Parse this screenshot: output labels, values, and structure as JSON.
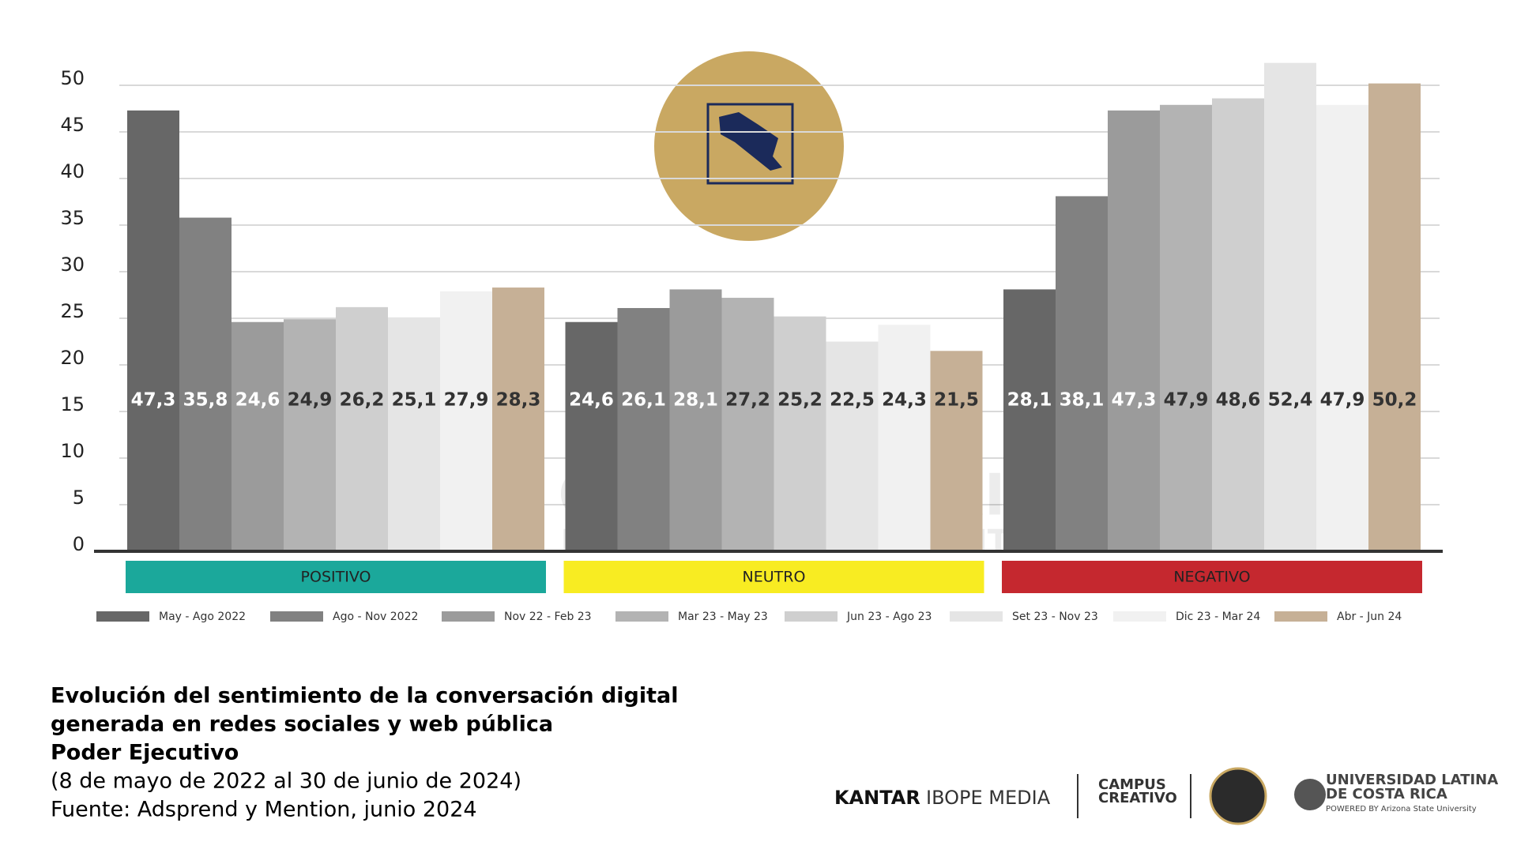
{
  "chart_data": {
    "type": "bar",
    "title": [
      "Evolución del sentimiento de la conversación digital",
      "generada en redes sociales y web pública",
      "Poder Ejecutivo"
    ],
    "subtitle": [
      "(8 de mayo de 2022 al 30 de junio de 2024)",
      "Fuente: Adsprend y Mention, junio 2024"
    ],
    "categories": [
      "POSITIVO",
      "NEUTRO",
      "NEGATIVO"
    ],
    "category_colors": [
      "#1ba89b",
      "#f8ec22",
      "#c5282f"
    ],
    "series": [
      {
        "name": "May - Ago 2022",
        "color": "#676767",
        "values": [
          47.3,
          24.6,
          28.1
        ],
        "value_labels": [
          "47,3",
          "24,6",
          "28,1"
        ]
      },
      {
        "name": "Ago - Nov 2022",
        "color": "#818181",
        "values": [
          35.8,
          26.1,
          38.1
        ],
        "value_labels": [
          "35,8",
          "26,1",
          "38,1"
        ]
      },
      {
        "name": "Nov 22 - Feb 23",
        "color": "#9b9b9b",
        "values": [
          24.6,
          28.1,
          47.3
        ],
        "value_labels": [
          "24,6",
          "28,1",
          "47,3"
        ]
      },
      {
        "name": "Mar 23 - May 23",
        "color": "#b3b3b3",
        "values": [
          24.9,
          27.2,
          47.9
        ],
        "value_labels": [
          "24,9",
          "27,2",
          "47,9"
        ]
      },
      {
        "name": "Jun 23 - Ago 23",
        "color": "#cfcfcf",
        "values": [
          26.2,
          25.2,
          48.6
        ],
        "value_labels": [
          "26,2",
          "25,2",
          "48,6"
        ]
      },
      {
        "name": "Set 23 - Nov 23",
        "color": "#e5e5e5",
        "values": [
          25.1,
          22.5,
          52.4
        ],
        "value_labels": [
          "25,1",
          "22,5",
          "52,4"
        ]
      },
      {
        "name": "Dic 23 - Mar 24",
        "color": "#f1f1f1",
        "values": [
          27.9,
          24.3,
          47.9
        ],
        "value_labels": [
          "27,9",
          "24,3",
          "47,9"
        ]
      },
      {
        "name": "Abr - Jun 24",
        "color": "#c6b096",
        "values": [
          28.3,
          21.5,
          50.2
        ],
        "value_labels": [
          "28,3",
          "21,5",
          "50,2"
        ]
      }
    ],
    "ylim": [
      0,
      55
    ],
    "yticks": [
      0,
      5,
      10,
      15,
      20,
      25,
      30,
      35,
      40,
      45,
      50
    ],
    "grid": true,
    "watermark": [
      "OBSERVATORIO",
      "DE COMUNICACIÓN DIGITAL"
    ]
  },
  "footer": {
    "kantar": "KANTAR",
    "ibope": "IBOPE MEDIA",
    "campus": [
      "CAMPUS",
      "CREATIVO"
    ],
    "ulatina": [
      "UNIVERSIDAD LATINA",
      "DE COSTA RICA"
    ],
    "powered": "POWERED BY Arizona State University"
  }
}
